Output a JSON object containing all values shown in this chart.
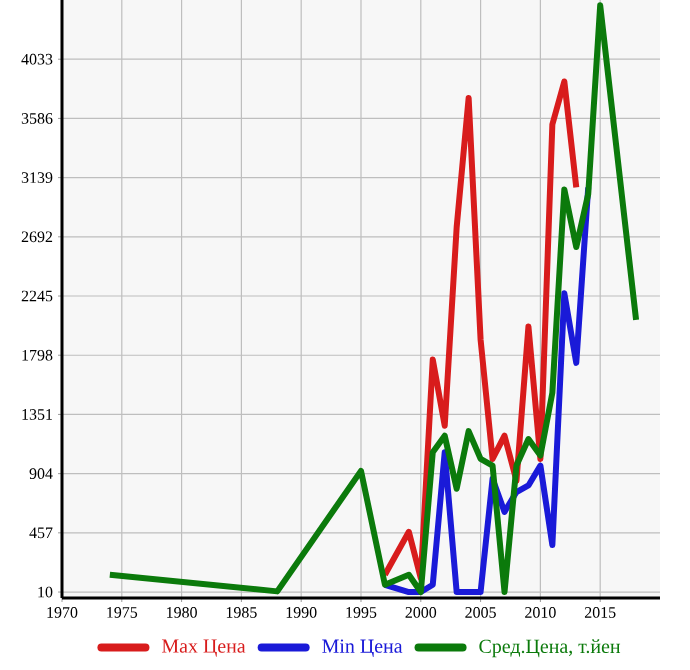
{
  "chart_data": {
    "type": "line",
    "xlim": [
      1970,
      2020
    ],
    "xticks": [
      1970,
      1975,
      1980,
      1985,
      1990,
      1995,
      2000,
      2005,
      2010,
      2015
    ],
    "ylim": [
      -35,
      4480
    ],
    "yticks": [
      10,
      457,
      904,
      1351,
      1798,
      2245,
      2692,
      3139,
      3586,
      4033
    ],
    "grid": true,
    "legend": "bottom",
    "line_style": "solid",
    "marker": "none",
    "series": [
      {
        "name": "Max Цена",
        "color": "#d81c1c",
        "x": [
          1997,
          1999,
          2000,
          2001,
          2002,
          2003,
          2004,
          2005,
          2006,
          2007,
          2008,
          2009,
          2010,
          2011,
          2012,
          2013
        ],
        "values": [
          140,
          465,
          115,
          1765,
          1265,
          2765,
          3740,
          1915,
          1015,
          1190,
          850,
          2015,
          1015,
          3540,
          3865,
          3065
        ]
      },
      {
        "name": "Min Цена",
        "color": "#1a1ad8",
        "x": [
          1997,
          1999,
          2000,
          2001,
          2002,
          2003,
          2004,
          2005,
          2006,
          2007,
          2008,
          2009,
          2010,
          2011,
          2012,
          2013,
          2014
        ],
        "values": [
          65,
          10,
          10,
          65,
          1065,
          10,
          10,
          10,
          865,
          615,
          765,
          815,
          965,
          365,
          2265,
          1740,
          3065
        ]
      },
      {
        "name": "Сред.Цена, т.йен",
        "color": "#0b7a0b",
        "x": [
          1974,
          1988,
          1995,
          1997,
          1999,
          2000,
          2001,
          2002,
          2003,
          2004,
          2005,
          2006,
          2007,
          2008,
          2009,
          2010,
          2011,
          2012,
          2013,
          2014,
          2015,
          2018
        ],
        "values": [
          140,
          15,
          925,
          65,
          140,
          10,
          1065,
          1190,
          790,
          1225,
          1015,
          965,
          10,
          965,
          1165,
          1040,
          1515,
          3050,
          2615,
          3015,
          4440,
          2065
        ]
      }
    ]
  }
}
